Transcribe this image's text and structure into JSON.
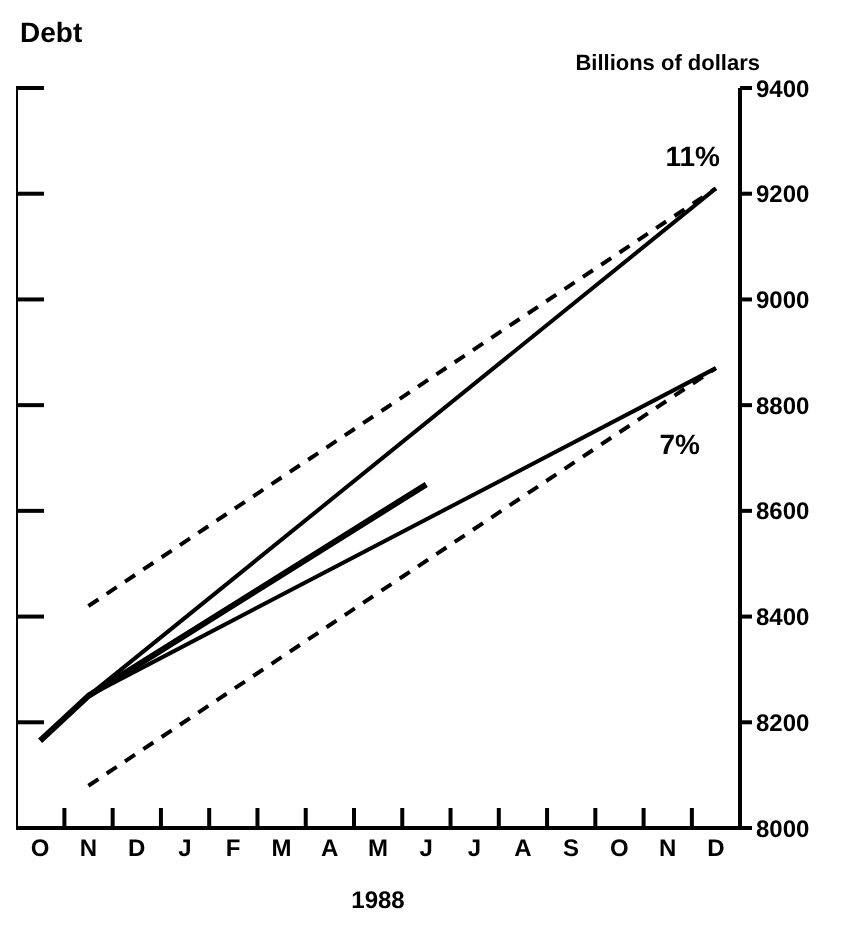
{
  "chart_data": {
    "type": "line",
    "title": "Debt",
    "ylabel": "Billions of dollars",
    "xlabel": "1988",
    "categories": [
      "O",
      "N",
      "D",
      "J",
      "F",
      "M",
      "A",
      "M",
      "J",
      "J",
      "A",
      "S",
      "O",
      "N",
      "D"
    ],
    "ylim": [
      8000,
      9400
    ],
    "yticks": [
      8000,
      8200,
      8400,
      8600,
      8800,
      9000,
      9200,
      9400
    ],
    "series": [
      {
        "color": "#000000",
        "line_style": "solid",
        "values": [
          null,
          8250,
          null,
          null,
          null,
          null,
          null,
          null,
          null,
          null,
          null,
          null,
          null,
          null,
          9210
        ]
      },
      {
        "color": "#000000",
        "line_style": "solid",
        "values": [
          null,
          8250,
          null,
          null,
          null,
          null,
          null,
          null,
          null,
          null,
          null,
          null,
          null,
          null,
          8870
        ]
      },
      {
        "color": "#000000",
        "line_style": "dashed",
        "values": [
          null,
          8420,
          null,
          null,
          null,
          null,
          null,
          null,
          null,
          null,
          null,
          null,
          null,
          null,
          9210
        ]
      },
      {
        "color": "#000000",
        "line_style": "dashed",
        "values": [
          null,
          8080,
          null,
          null,
          null,
          null,
          null,
          null,
          null,
          null,
          null,
          null,
          null,
          null,
          8870
        ]
      },
      {
        "color": "#000000",
        "line_style": "solid",
        "values": [
          8165,
          8250,
          null,
          null,
          null,
          null,
          null,
          null,
          8650,
          null,
          null,
          null,
          null,
          null,
          null
        ]
      }
    ],
    "annotations": [
      "11%",
      "7%"
    ]
  }
}
